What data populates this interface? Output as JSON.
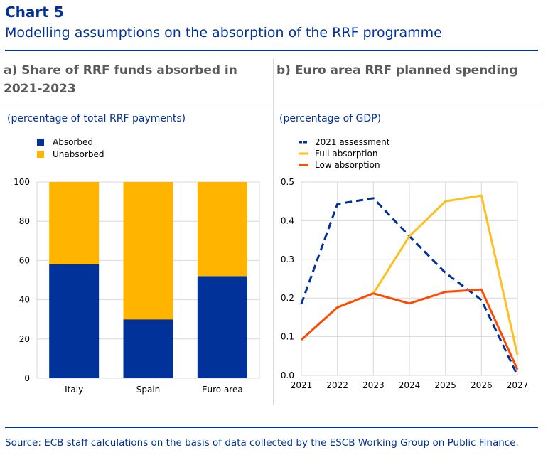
{
  "header": {
    "chart_number": "Chart 5",
    "title": "Modelling assumptions on the absorption of the RRF programme"
  },
  "source": "Source: ECB staff calculations on the basis of data collected by the ESCB Working Group on Public Finance.",
  "colors": {
    "brand_blue": "#003299",
    "absorbed": "#003299",
    "unabsorbed": "#ffb400",
    "assessment_2021": "#003299",
    "full_absorption": "#ffbf1f",
    "low_absorption": "#ff4b00"
  },
  "chart_data": [
    {
      "type": "bar",
      "stacked": true,
      "panel_title": "a) Share of RRF funds absorbed in 2021-2023",
      "unit": "(percentage of total RRF payments)",
      "categories": [
        "Italy",
        "Spain",
        "Euro area"
      ],
      "series": [
        {
          "name": "Absorbed",
          "values": [
            58,
            30,
            52
          ]
        },
        {
          "name": "Unabsorbed",
          "values": [
            42,
            70,
            48
          ]
        }
      ],
      "ylim": [
        0,
        100
      ],
      "yticks": [
        0,
        20,
        40,
        60,
        80,
        100
      ],
      "grid": true,
      "legend": "top-left"
    },
    {
      "type": "line",
      "panel_title": "b) Euro area RRF planned spending",
      "unit": "(percentage of GDP)",
      "x": [
        "2021",
        "2022",
        "2023",
        "2024",
        "2025",
        "2026",
        "2027"
      ],
      "series": [
        {
          "name": "2021 assessment",
          "style": "dashed",
          "values": [
            0.185,
            0.443,
            0.458,
            0.36,
            0.265,
            0.195,
            0.0
          ]
        },
        {
          "name": "Full absorption",
          "style": "solid",
          "values": [
            null,
            null,
            0.212,
            0.36,
            0.45,
            0.465,
            0.053
          ]
        },
        {
          "name": "Low absorption",
          "style": "solid",
          "values": [
            0.092,
            0.176,
            0.212,
            0.186,
            0.216,
            0.222,
            0.015
          ]
        }
      ],
      "ylim": [
        0,
        0.5
      ],
      "yticks": [
        "0.0",
        "0.1",
        "0.2",
        "0.3",
        "0.4",
        "0.5"
      ],
      "grid": true,
      "legend": "top-left"
    }
  ]
}
